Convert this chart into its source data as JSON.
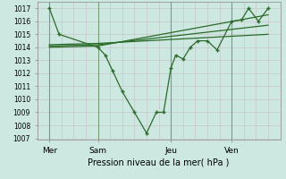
{
  "bg_color": "#cce8e0",
  "grid_color": "#d8d8d8",
  "grid_color_h": "#c8c8c8",
  "line_color": "#2a6b2a",
  "ylabel": "Pression niveau de la mer( hPa )",
  "ylim": [
    1007,
    1017.5
  ],
  "yticks": [
    1007,
    1008,
    1009,
    1010,
    1011,
    1012,
    1013,
    1014,
    1015,
    1016,
    1017
  ],
  "xlim": [
    0,
    10.0
  ],
  "xtick_labels": [
    "Mer",
    "Sam",
    "Jeu",
    "Ven"
  ],
  "xtick_positions": [
    0.5,
    2.5,
    5.5,
    8.0
  ],
  "xvlines": [
    0.5,
    2.5,
    5.5,
    8.0
  ],
  "series1_x": [
    0.5,
    0.9,
    2.5,
    2.8,
    3.1,
    3.5,
    4.0,
    4.5,
    4.9,
    5.2,
    5.5,
    5.7,
    6.0,
    6.3,
    6.6,
    7.0,
    7.4,
    8.0,
    8.4,
    8.7,
    9.1,
    9.5
  ],
  "series1_y": [
    1017,
    1015,
    1014,
    1013.4,
    1012.2,
    1010.6,
    1009.0,
    1007.4,
    1009.0,
    1009.0,
    1012.4,
    1013.4,
    1013.1,
    1014.0,
    1014.5,
    1014.5,
    1013.8,
    1016.0,
    1016.1,
    1017.0,
    1016.0,
    1017.0
  ],
  "smooth_lines": [
    {
      "x": [
        0.5,
        2.5,
        9.5
      ],
      "y": [
        1014.0,
        1014.1,
        1016.5
      ]
    },
    {
      "x": [
        0.5,
        2.5,
        9.5
      ],
      "y": [
        1014.1,
        1014.2,
        1015.7
      ]
    },
    {
      "x": [
        0.5,
        2.5,
        9.5
      ],
      "y": [
        1014.2,
        1014.3,
        1015.0
      ]
    }
  ]
}
